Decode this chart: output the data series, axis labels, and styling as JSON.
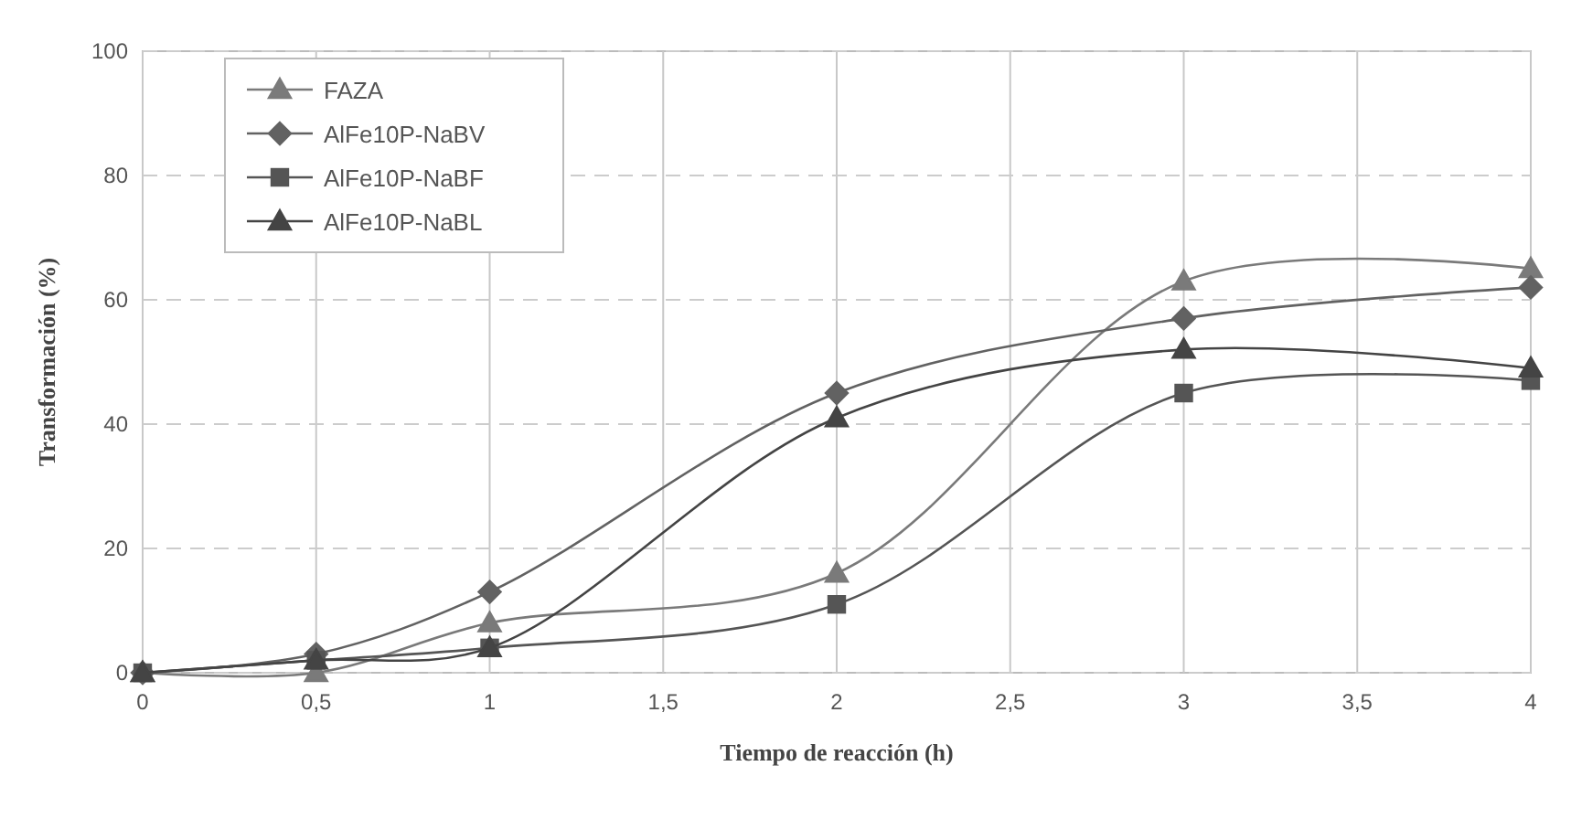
{
  "chart_data": {
    "type": "line",
    "xlabel": "Tiempo de reacción (h)",
    "ylabel": "Transformación (%)",
    "xlim": [
      0,
      4
    ],
    "xticks": [
      0,
      {
        "value": 0.5,
        "label": "0,5"
      },
      1,
      {
        "value": 1.5,
        "label": "1,5"
      },
      2,
      {
        "value": 2.5,
        "label": "2,5"
      },
      3,
      {
        "value": 3.5,
        "label": "3,5"
      },
      4
    ],
    "ylim": [
      0,
      100
    ],
    "yticks": [
      0,
      20,
      40,
      60,
      80,
      100
    ],
    "grid": true,
    "legend": "top left",
    "line_style": "solid",
    "x": [
      0,
      0.5,
      1,
      2,
      3,
      4
    ],
    "series": [
      {
        "name": "FAZA",
        "color": "#7a7a7a",
        "marker": "triangle",
        "values": [
          0,
          0,
          8,
          16,
          63,
          65
        ]
      },
      {
        "name": "AlFe10P-NaBV",
        "color": "#626262",
        "marker": "diamond",
        "values": [
          0,
          3,
          13,
          45,
          57,
          62
        ]
      },
      {
        "name": "AlFe10P-NaBF",
        "color": "#555555",
        "marker": "square",
        "values": [
          0,
          2,
          4,
          11,
          45,
          47
        ]
      },
      {
        "name": "AlFe10P-NaBL",
        "color": "#444444",
        "marker": "triangle",
        "values": [
          0,
          2,
          4,
          41,
          52,
          49
        ]
      }
    ]
  }
}
